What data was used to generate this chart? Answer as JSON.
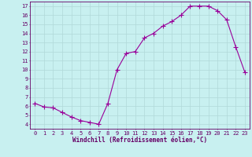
{
  "x": [
    0,
    1,
    2,
    3,
    4,
    5,
    6,
    7,
    8,
    9,
    10,
    11,
    12,
    13,
    14,
    15,
    16,
    17,
    18,
    19,
    20,
    21,
    22,
    23
  ],
  "y": [
    6.3,
    5.9,
    5.8,
    5.3,
    4.8,
    4.4,
    4.2,
    4.0,
    6.3,
    10.0,
    11.8,
    12.0,
    13.5,
    14.0,
    14.8,
    15.3,
    16.0,
    17.0,
    17.0,
    17.0,
    16.5,
    15.5,
    12.5,
    9.7
  ],
  "xlabel": "Windchill (Refroidissement éolien,°C)",
  "xlim": [
    -0.5,
    23.5
  ],
  "ylim": [
    3.5,
    17.5
  ],
  "yticks": [
    4,
    5,
    6,
    7,
    8,
    9,
    10,
    11,
    12,
    13,
    14,
    15,
    16,
    17
  ],
  "xticks": [
    0,
    1,
    2,
    3,
    4,
    5,
    6,
    7,
    8,
    9,
    10,
    11,
    12,
    13,
    14,
    15,
    16,
    17,
    18,
    19,
    20,
    21,
    22,
    23
  ],
  "line_color": "#990099",
  "marker": "+",
  "marker_size": 4,
  "bg_color": "#c8f0f0",
  "grid_color": "#b0d8d8",
  "tick_color": "#660066",
  "label_color": "#660066",
  "font_family": "monospace",
  "tick_fontsize": 5.0,
  "xlabel_fontsize": 5.5
}
